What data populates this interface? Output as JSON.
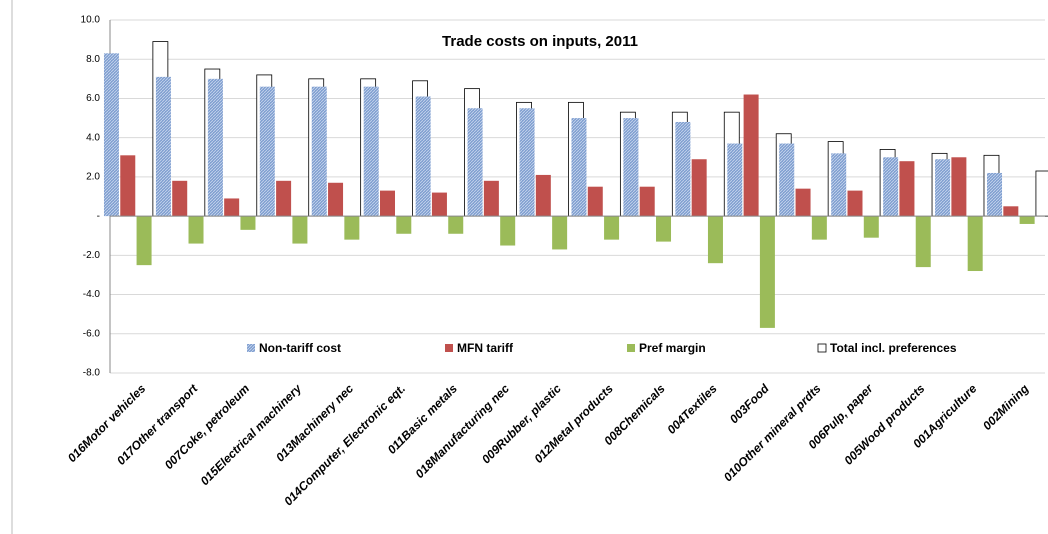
{
  "chart_data": {
    "type": "bar",
    "title": "Trade costs on inputs, 2011",
    "categories": [
      "016Motor vehicles",
      "017Other transport",
      "007Coke, petroleum",
      "015Electrical machinery",
      "013Machinery nec",
      "014Computer, Electronic eqt.",
      "011Basic metals",
      "018Manufacturing nec",
      "009Rubber, plastic",
      "012Metal products",
      "008Chemicals",
      "004Textiles",
      "003Food",
      "010Other mineral prdts",
      "006Pulp, paper",
      "005Wood products",
      "001Agriculture",
      "002Mining"
    ],
    "series": [
      {
        "name": "Non-tariff cost",
        "color": "#809fd0",
        "values": [
          8.3,
          7.1,
          7.0,
          6.6,
          6.6,
          6.6,
          6.1,
          5.5,
          5.5,
          5.0,
          5.0,
          4.8,
          3.7,
          3.7,
          3.2,
          3.0,
          2.9,
          2.2
        ]
      },
      {
        "name": "MFN tariff",
        "color": "#c0504d",
        "values": [
          3.1,
          1.8,
          0.9,
          1.8,
          1.7,
          1.3,
          1.2,
          1.8,
          2.1,
          1.5,
          1.5,
          2.9,
          6.2,
          1.4,
          1.3,
          2.8,
          3.0,
          0.5
        ]
      },
      {
        "name": "Pref margin",
        "color": "#9bbb59",
        "values": [
          -2.5,
          -1.4,
          -0.7,
          -1.4,
          -1.2,
          -0.9,
          -0.9,
          -1.5,
          -1.7,
          -1.2,
          -1.3,
          -2.4,
          -5.7,
          -1.2,
          -1.1,
          -2.6,
          -2.8,
          -0.4
        ]
      },
      {
        "name": "Total incl. preferences",
        "color": "#ffffff",
        "values": [
          8.9,
          7.5,
          7.2,
          7.0,
          7.0,
          6.9,
          6.5,
          5.8,
          5.8,
          5.3,
          5.3,
          5.3,
          4.2,
          3.8,
          3.4,
          3.2,
          3.1,
          2.3
        ]
      }
    ],
    "ylim": [
      -8,
      10
    ],
    "yticks": [
      {
        "value": -8,
        "label": "-8.0"
      },
      {
        "value": -6,
        "label": "-6.0"
      },
      {
        "value": -4,
        "label": "-4.0"
      },
      {
        "value": -2,
        "label": "-2.0"
      },
      {
        "value": 0,
        "label": "-"
      },
      {
        "value": 2,
        "label": "2.0"
      },
      {
        "value": 4,
        "label": "4.0"
      },
      {
        "value": 6,
        "label": "6.0"
      },
      {
        "value": 8,
        "label": "8.0"
      },
      {
        "value": 10,
        "label": "10.0"
      }
    ],
    "grid": true
  }
}
